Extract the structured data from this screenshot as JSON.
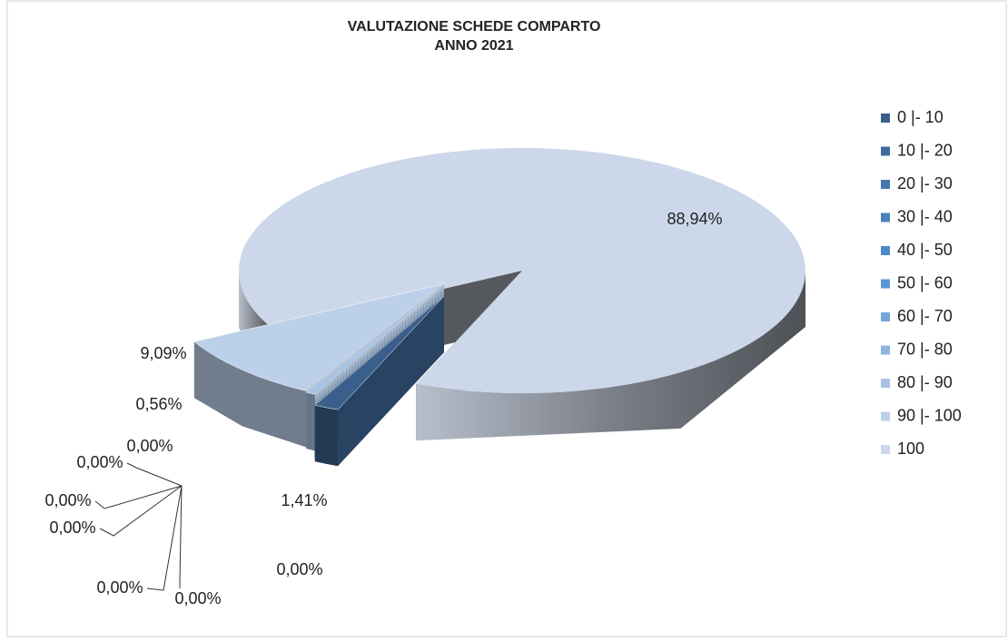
{
  "chart_data": {
    "type": "pie3d",
    "title": "VALUTAZIONE SCHEDE COMPARTO",
    "subtitle": "ANNO 2021",
    "categories": [
      "0 |- 10",
      "10 |- 20",
      "20 |- 30",
      "30 |- 40",
      "40 |- 50",
      "50 |- 60",
      "60 |- 70",
      "70 |- 80",
      "80 |- 90",
      "90 |- 100",
      "100"
    ],
    "values": [
      1.41,
      0,
      0,
      0,
      0,
      0,
      0,
      0,
      0.56,
      9.09,
      88.94
    ],
    "value_labels": [
      "1,41%",
      "0,00%",
      "0,00%",
      "0,00%",
      "0,00%",
      "0,00%",
      "0,00%",
      "0,00%",
      "0,56%",
      "9,09%",
      "88,94%"
    ],
    "colors": [
      "#3b5f8c",
      "#3e6a9e",
      "#4677ad",
      "#4b81bd",
      "#5089c6",
      "#5b97d3",
      "#74a5d8",
      "#8fb3dc",
      "#a9c3e4",
      "#bdd0ea",
      "#ccd7ea"
    ],
    "legend": "right"
  }
}
